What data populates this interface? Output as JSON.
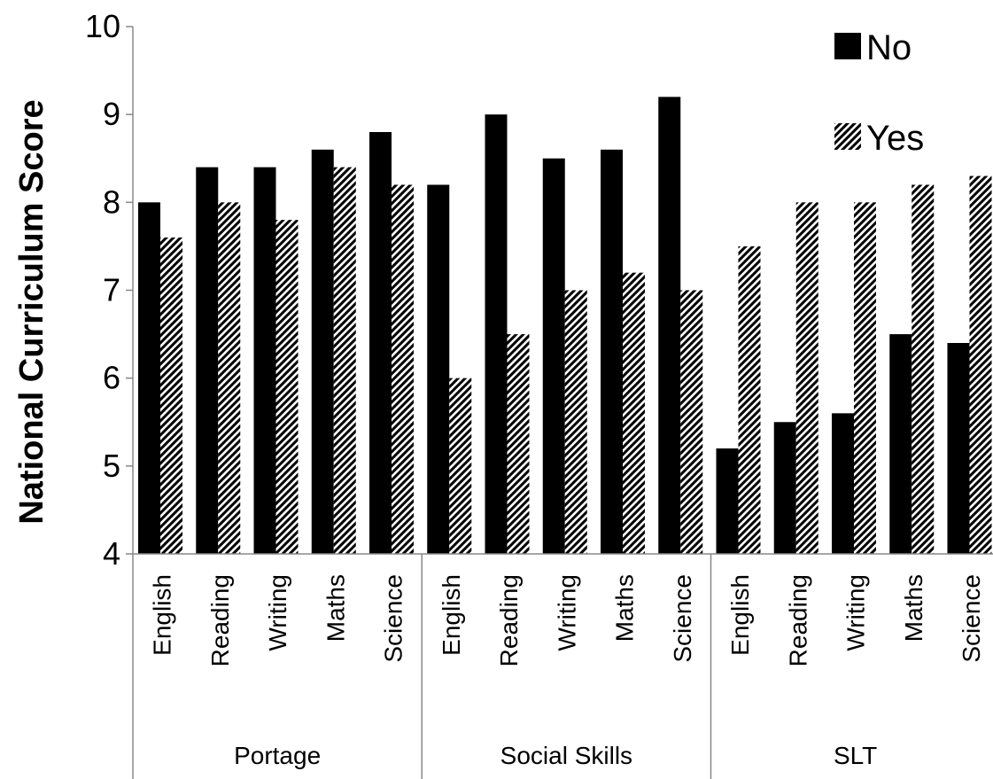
{
  "chart_data": {
    "type": "bar",
    "ylabel": "National Curriculum Score",
    "xlabel": "",
    "ylim": [
      4,
      10
    ],
    "yticks": [
      "4",
      "5",
      "6",
      "7",
      "8",
      "9",
      "10"
    ],
    "grid": false,
    "legend_position": "top-right",
    "groups": [
      {
        "label": "Portage",
        "categories": [
          "English",
          "Reading",
          "Writing",
          "Maths",
          "Science"
        ]
      },
      {
        "label": "Social Skills",
        "categories": [
          "English",
          "Reading",
          "Writing",
          "Maths",
          "Science"
        ]
      },
      {
        "label": "SLT",
        "categories": [
          "English",
          "Reading",
          "Writing",
          "Maths",
          "Science"
        ]
      }
    ],
    "series": [
      {
        "name": "No",
        "color": "#000000",
        "pattern": "solid",
        "values": [
          8.0,
          8.4,
          8.4,
          8.6,
          8.8,
          8.2,
          9.0,
          8.5,
          8.6,
          9.2,
          5.2,
          5.5,
          5.6,
          6.5,
          6.4
        ]
      },
      {
        "name": "Yes",
        "color": "#000000",
        "pattern": "diagonal-hatch",
        "values": [
          7.6,
          8.0,
          7.8,
          8.4,
          8.2,
          6.0,
          6.5,
          7.0,
          7.2,
          7.0,
          7.5,
          8.0,
          8.0,
          8.2,
          8.3
        ]
      }
    ]
  }
}
